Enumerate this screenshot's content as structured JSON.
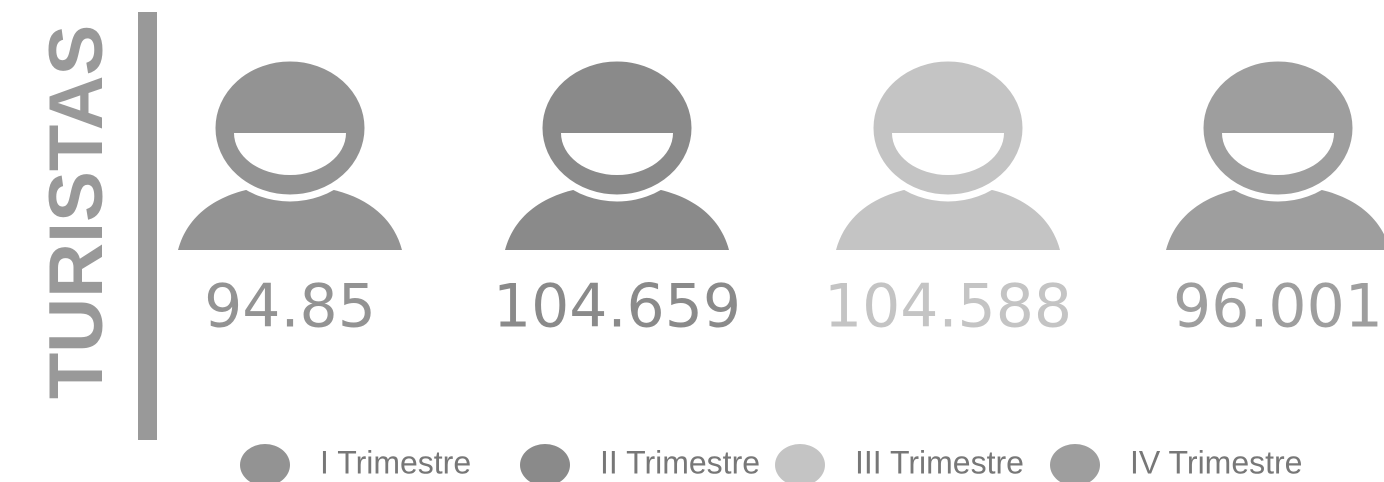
{
  "title": "TURISTAS",
  "items": [
    {
      "label": "I Trimestre",
      "value": "94.85",
      "color": "#939393"
    },
    {
      "label": "II Trimestre",
      "value": "104.659",
      "color": "#8a8a8a"
    },
    {
      "label": "III Trimestre",
      "value": "104.588",
      "color": "#c4c4c4"
    },
    {
      "label": "IV Trimestre",
      "value": "96.001",
      "color": "#9e9e9e"
    }
  ]
}
